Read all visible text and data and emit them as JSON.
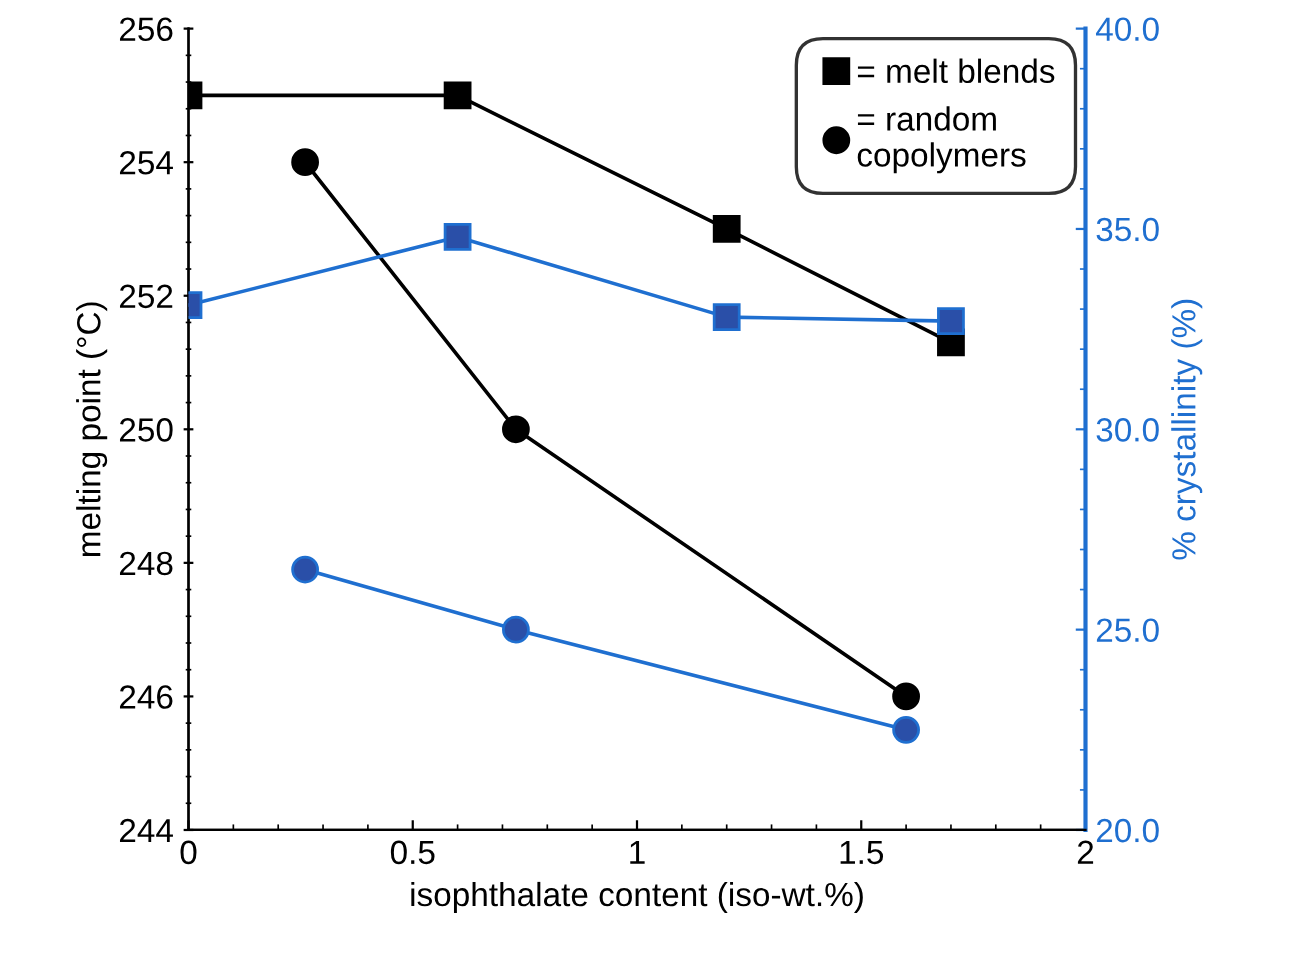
{
  "chart_data": {
    "type": "line",
    "xlabel": "isophthalate content (iso-wt.%)",
    "ylabel": "melting point (°C)",
    "y2label": "% crystallinity (%)",
    "xlim": [
      0,
      2
    ],
    "xticks": [
      0,
      {
        "value": 0.5,
        "label": "0.5"
      },
      1,
      {
        "value": 1.5,
        "label": "1.5"
      },
      2
    ],
    "ylim": [
      244,
      256
    ],
    "yticks": [
      244,
      246,
      248,
      250,
      252,
      254,
      256
    ],
    "y2lim": [
      20,
      40
    ],
    "y2ticks": [
      {
        "value": 20,
        "label": "20.0"
      },
      {
        "value": 25,
        "label": "25.0"
      },
      {
        "value": 30,
        "label": "30.0"
      },
      {
        "value": 35,
        "label": "35.0"
      },
      {
        "value": 40,
        "label": "40.0"
      }
    ],
    "legend": "top right",
    "grid": false,
    "line_style": "solid",
    "series": [
      {
        "name": "= melt blends",
        "color": "#000000",
        "marker": "square",
        "x": [
          0,
          0.6,
          1.2,
          1.7
        ],
        "values": [
          255,
          255,
          253,
          251.3
        ]
      },
      {
        "name": "= random\ncopolymers",
        "color": "#000000",
        "marker": "circle",
        "x": [
          0.26,
          0.73,
          1.6
        ],
        "values": [
          254,
          250,
          246
        ]
      },
      {
        "color": "#2a4fa8",
        "marker": "square",
        "axis": "y2",
        "x": [
          0,
          0.6,
          1.2,
          1.7
        ],
        "values": [
          33.1,
          34.8,
          32.8,
          32.7
        ]
      },
      {
        "color": "#2a4fa8",
        "marker": "circle",
        "axis": "y2",
        "x": [
          0.26,
          0.73,
          1.6
        ],
        "values": [
          26.5,
          25.0,
          22.5
        ]
      }
    ]
  }
}
